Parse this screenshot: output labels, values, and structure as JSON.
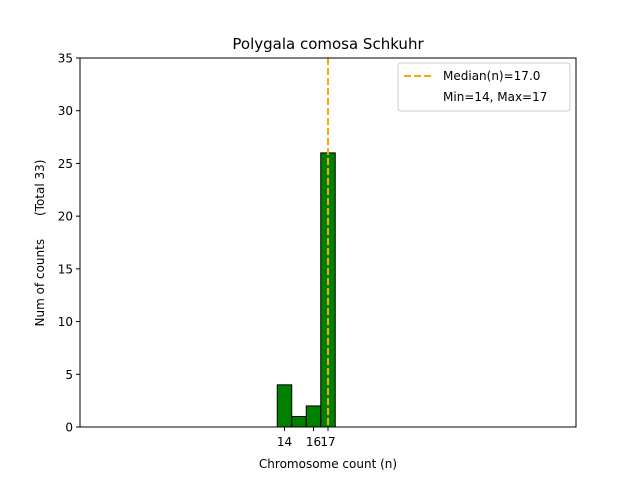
{
  "chart_data": {
    "type": "bar",
    "title": "Polygala comosa Schkuhr",
    "xlabel": "Chromosome count (n)",
    "ylabel": "Num of counts      (Total 33)",
    "ylim": [
      0,
      35
    ],
    "yticks": [
      0,
      5,
      10,
      15,
      20,
      25,
      30,
      35
    ],
    "xticks": [
      14,
      16,
      17
    ],
    "bars": [
      {
        "x": 14,
        "value": 4
      },
      {
        "x": 15,
        "value": 1
      },
      {
        "x": 16,
        "value": 2
      },
      {
        "x": 17,
        "value": 26
      }
    ],
    "bar_color": "#008000",
    "median": 17.0,
    "median_color": "#ffa500",
    "legend": {
      "position": "top-right",
      "entries": [
        "Median(n)=17.0",
        "Min=14, Max=17"
      ]
    }
  }
}
